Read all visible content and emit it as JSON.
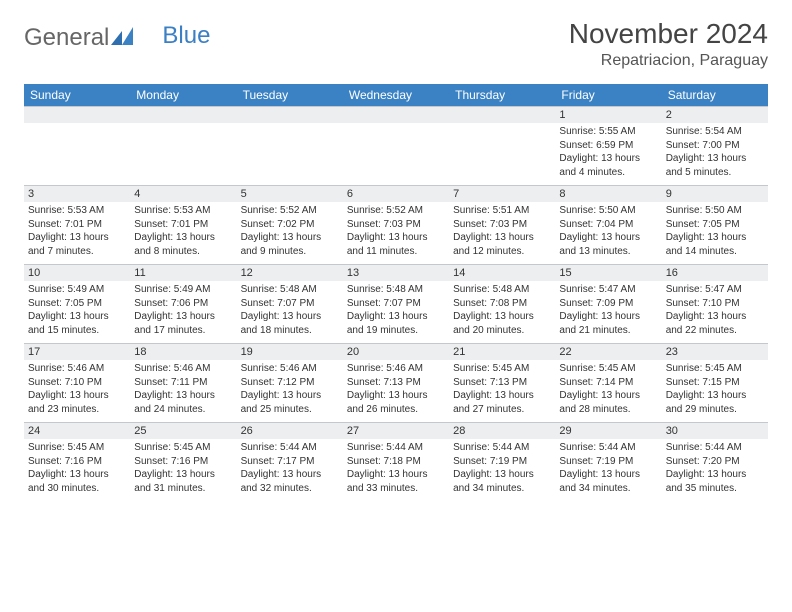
{
  "logo": {
    "part1": "General",
    "part2": "Blue"
  },
  "title": "November 2024",
  "location": "Repatriacion, Paraguay",
  "colors": {
    "header_bg": "#3b82c4",
    "header_text": "#ffffff",
    "numrow_bg": "#eceeef",
    "spacer_bg": "#eef0f1",
    "text": "#333333"
  },
  "day_headers": [
    "Sunday",
    "Monday",
    "Tuesday",
    "Wednesday",
    "Thursday",
    "Friday",
    "Saturday"
  ],
  "weeks": [
    [
      null,
      null,
      null,
      null,
      null,
      {
        "n": "1",
        "sr": "5:55 AM",
        "ss": "6:59 PM",
        "dl": "13 hours and 4 minutes."
      },
      {
        "n": "2",
        "sr": "5:54 AM",
        "ss": "7:00 PM",
        "dl": "13 hours and 5 minutes."
      }
    ],
    [
      {
        "n": "3",
        "sr": "5:53 AM",
        "ss": "7:01 PM",
        "dl": "13 hours and 7 minutes."
      },
      {
        "n": "4",
        "sr": "5:53 AM",
        "ss": "7:01 PM",
        "dl": "13 hours and 8 minutes."
      },
      {
        "n": "5",
        "sr": "5:52 AM",
        "ss": "7:02 PM",
        "dl": "13 hours and 9 minutes."
      },
      {
        "n": "6",
        "sr": "5:52 AM",
        "ss": "7:03 PM",
        "dl": "13 hours and 11 minutes."
      },
      {
        "n": "7",
        "sr": "5:51 AM",
        "ss": "7:03 PM",
        "dl": "13 hours and 12 minutes."
      },
      {
        "n": "8",
        "sr": "5:50 AM",
        "ss": "7:04 PM",
        "dl": "13 hours and 13 minutes."
      },
      {
        "n": "9",
        "sr": "5:50 AM",
        "ss": "7:05 PM",
        "dl": "13 hours and 14 minutes."
      }
    ],
    [
      {
        "n": "10",
        "sr": "5:49 AM",
        "ss": "7:05 PM",
        "dl": "13 hours and 15 minutes."
      },
      {
        "n": "11",
        "sr": "5:49 AM",
        "ss": "7:06 PM",
        "dl": "13 hours and 17 minutes."
      },
      {
        "n": "12",
        "sr": "5:48 AM",
        "ss": "7:07 PM",
        "dl": "13 hours and 18 minutes."
      },
      {
        "n": "13",
        "sr": "5:48 AM",
        "ss": "7:07 PM",
        "dl": "13 hours and 19 minutes."
      },
      {
        "n": "14",
        "sr": "5:48 AM",
        "ss": "7:08 PM",
        "dl": "13 hours and 20 minutes."
      },
      {
        "n": "15",
        "sr": "5:47 AM",
        "ss": "7:09 PM",
        "dl": "13 hours and 21 minutes."
      },
      {
        "n": "16",
        "sr": "5:47 AM",
        "ss": "7:10 PM",
        "dl": "13 hours and 22 minutes."
      }
    ],
    [
      {
        "n": "17",
        "sr": "5:46 AM",
        "ss": "7:10 PM",
        "dl": "13 hours and 23 minutes."
      },
      {
        "n": "18",
        "sr": "5:46 AM",
        "ss": "7:11 PM",
        "dl": "13 hours and 24 minutes."
      },
      {
        "n": "19",
        "sr": "5:46 AM",
        "ss": "7:12 PM",
        "dl": "13 hours and 25 minutes."
      },
      {
        "n": "20",
        "sr": "5:46 AM",
        "ss": "7:13 PM",
        "dl": "13 hours and 26 minutes."
      },
      {
        "n": "21",
        "sr": "5:45 AM",
        "ss": "7:13 PM",
        "dl": "13 hours and 27 minutes."
      },
      {
        "n": "22",
        "sr": "5:45 AM",
        "ss": "7:14 PM",
        "dl": "13 hours and 28 minutes."
      },
      {
        "n": "23",
        "sr": "5:45 AM",
        "ss": "7:15 PM",
        "dl": "13 hours and 29 minutes."
      }
    ],
    [
      {
        "n": "24",
        "sr": "5:45 AM",
        "ss": "7:16 PM",
        "dl": "13 hours and 30 minutes."
      },
      {
        "n": "25",
        "sr": "5:45 AM",
        "ss": "7:16 PM",
        "dl": "13 hours and 31 minutes."
      },
      {
        "n": "26",
        "sr": "5:44 AM",
        "ss": "7:17 PM",
        "dl": "13 hours and 32 minutes."
      },
      {
        "n": "27",
        "sr": "5:44 AM",
        "ss": "7:18 PM",
        "dl": "13 hours and 33 minutes."
      },
      {
        "n": "28",
        "sr": "5:44 AM",
        "ss": "7:19 PM",
        "dl": "13 hours and 34 minutes."
      },
      {
        "n": "29",
        "sr": "5:44 AM",
        "ss": "7:19 PM",
        "dl": "13 hours and 34 minutes."
      },
      {
        "n": "30",
        "sr": "5:44 AM",
        "ss": "7:20 PM",
        "dl": "13 hours and 35 minutes."
      }
    ]
  ],
  "labels": {
    "sunrise": "Sunrise: ",
    "sunset": "Sunset: ",
    "daylight": "Daylight: "
  }
}
